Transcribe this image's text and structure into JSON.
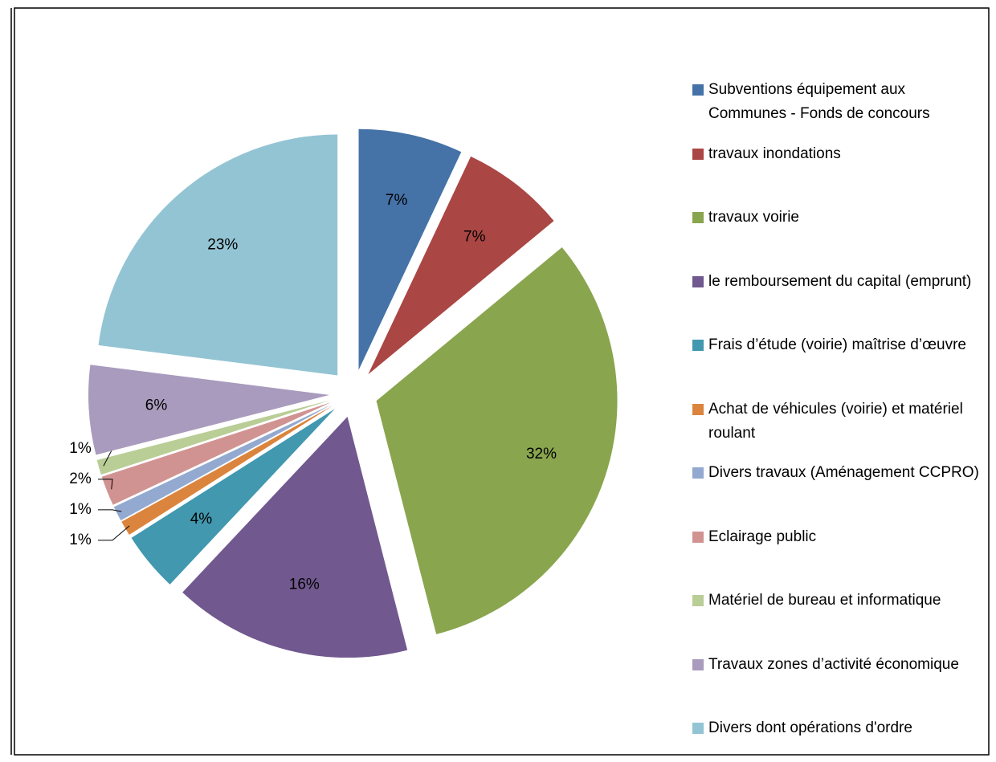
{
  "chart_data": {
    "type": "pie",
    "categories": [
      "Subventions équipement aux Communes - Fonds de concours",
      "travaux inondations",
      "travaux voirie",
      "le remboursement du capital (emprunt)",
      "Frais d’étude (voirie) maîtrise d’œuvre",
      "Achat de véhicules (voirie) et matériel roulant",
      "Divers travaux (Aménagement CCPRO)",
      "Eclairage public",
      "Matériel de bureau et informatique",
      "Travaux zones d’activité économique",
      "Divers dont opérations d'ordre"
    ],
    "values": [
      7,
      7,
      32,
      16,
      4,
      1,
      1,
      2,
      1,
      6,
      23
    ],
    "value_labels": [
      "7%",
      "7%",
      "32%",
      "16%",
      "4%",
      "1%",
      "1%",
      "2%",
      "1%",
      "6%",
      "23%"
    ],
    "colors": [
      "#4572A7",
      "#AA4643",
      "#89A54E",
      "#71588F",
      "#4198AF",
      "#DB843D",
      "#93A9CF",
      "#D19392",
      "#B9CD96",
      "#A99BBD",
      "#93C4D4"
    ],
    "legend": "right"
  }
}
